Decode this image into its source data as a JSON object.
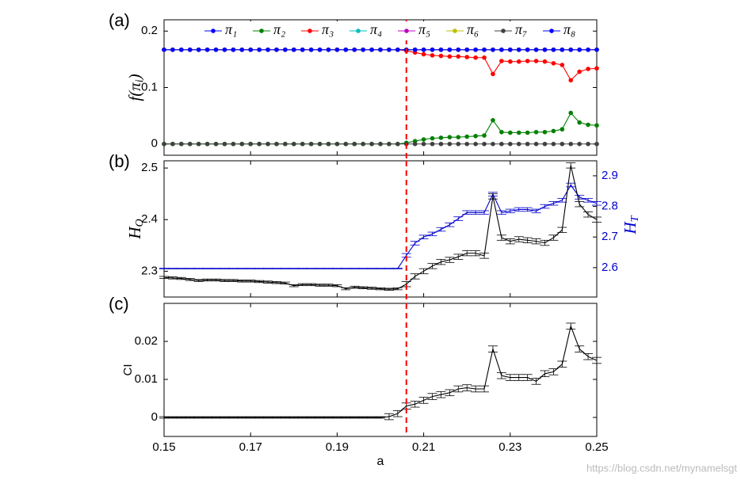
{
  "chart_data": [
    {
      "type": "line",
      "panel_label": "(a)",
      "ylabel": {
        "main": "f(π",
        "sub": "i",
        "tail": ")"
      },
      "xlim": [
        0.15,
        0.25
      ],
      "ylim": [
        -0.02,
        0.22
      ],
      "yticks": [
        0,
        0.1,
        0.2
      ],
      "markers": true,
      "legend": "top",
      "vline": 0.206,
      "vline_color": "#ff0000",
      "x": [
        0.15,
        0.152,
        0.154,
        0.156,
        0.158,
        0.16,
        0.162,
        0.164,
        0.166,
        0.168,
        0.17,
        0.172,
        0.174,
        0.176,
        0.178,
        0.18,
        0.182,
        0.184,
        0.186,
        0.188,
        0.19,
        0.192,
        0.194,
        0.196,
        0.198,
        0.2,
        0.202,
        0.204,
        0.206,
        0.208,
        0.21,
        0.212,
        0.214,
        0.216,
        0.218,
        0.22,
        0.222,
        0.224,
        0.226,
        0.228,
        0.23,
        0.232,
        0.234,
        0.236,
        0.238,
        0.24,
        0.242,
        0.244,
        0.246,
        0.248,
        0.25
      ],
      "series": [
        {
          "name": "π₁",
          "color": "#0000ff",
          "values": [
            0.167,
            0.167,
            0.167,
            0.167,
            0.167,
            0.167,
            0.167,
            0.167,
            0.167,
            0.167,
            0.167,
            0.167,
            0.167,
            0.167,
            0.167,
            0.167,
            0.167,
            0.167,
            0.167,
            0.167,
            0.167,
            0.167,
            0.167,
            0.167,
            0.167,
            0.167,
            0.167,
            0.167,
            0.167,
            0.167,
            0.167,
            0.167,
            0.167,
            0.167,
            0.167,
            0.167,
            0.167,
            0.167,
            0.167,
            0.167,
            0.167,
            0.167,
            0.167,
            0.167,
            0.167,
            0.167,
            0.167,
            0.167,
            0.167,
            0.167,
            0.167
          ]
        },
        {
          "name": "π₂",
          "color": "#008000",
          "values": [
            0,
            0,
            0,
            0,
            0,
            0,
            0,
            0,
            0,
            0,
            0,
            0,
            0,
            0,
            0,
            0,
            0,
            0,
            0,
            0,
            0,
            0,
            0,
            0,
            0,
            0,
            0,
            0,
            0.002,
            0.005,
            0.008,
            0.01,
            0.011,
            0.012,
            0.012,
            0.013,
            0.014,
            0.015,
            0.042,
            0.021,
            0.02,
            0.02,
            0.02,
            0.021,
            0.021,
            0.023,
            0.026,
            0.055,
            0.038,
            0.034,
            0.033
          ]
        },
        {
          "name": "π₃",
          "color": "#ff0000",
          "values": [
            0.167,
            0.167,
            0.167,
            0.167,
            0.167,
            0.167,
            0.167,
            0.167,
            0.167,
            0.167,
            0.167,
            0.167,
            0.167,
            0.167,
            0.167,
            0.167,
            0.167,
            0.167,
            0.167,
            0.167,
            0.167,
            0.167,
            0.167,
            0.167,
            0.167,
            0.167,
            0.167,
            0.167,
            0.165,
            0.162,
            0.159,
            0.157,
            0.156,
            0.155,
            0.155,
            0.154,
            0.153,
            0.153,
            0.124,
            0.147,
            0.146,
            0.146,
            0.147,
            0.147,
            0.146,
            0.143,
            0.14,
            0.113,
            0.128,
            0.133,
            0.134
          ]
        },
        {
          "name": "π₄",
          "color": "#00bfbf",
          "values": [
            0.167,
            0.167,
            0.167,
            0.167,
            0.167,
            0.167,
            0.167,
            0.167,
            0.167,
            0.167,
            0.167,
            0.167,
            0.167,
            0.167,
            0.167,
            0.167,
            0.167,
            0.167,
            0.167,
            0.167,
            0.167,
            0.167,
            0.167,
            0.167,
            0.167,
            0.167,
            0.167,
            0.167,
            0.167,
            0.167,
            0.167,
            0.167,
            0.167,
            0.167,
            0.167,
            0.167,
            0.167,
            0.167,
            0.167,
            0.167,
            0.167,
            0.167,
            0.167,
            0.167,
            0.167,
            0.167,
            0.167,
            0.167,
            0.167,
            0.167,
            0.167
          ]
        },
        {
          "name": "π₅",
          "color": "#bf00bf",
          "values": [
            0.167,
            0.167,
            0.167,
            0.167,
            0.167,
            0.167,
            0.167,
            0.167,
            0.167,
            0.167,
            0.167,
            0.167,
            0.167,
            0.167,
            0.167,
            0.167,
            0.167,
            0.167,
            0.167,
            0.167,
            0.167,
            0.167,
            0.167,
            0.167,
            0.167,
            0.167,
            0.167,
            0.167,
            0.167,
            0.167,
            0.167,
            0.167,
            0.167,
            0.167,
            0.167,
            0.167,
            0.167,
            0.167,
            0.167,
            0.167,
            0.167,
            0.167,
            0.167,
            0.167,
            0.167,
            0.167,
            0.167,
            0.167,
            0.167,
            0.167,
            0.167
          ]
        },
        {
          "name": "π₆",
          "color": "#bfbf00",
          "values": [
            0.167,
            0.167,
            0.167,
            0.167,
            0.167,
            0.167,
            0.167,
            0.167,
            0.167,
            0.167,
            0.167,
            0.167,
            0.167,
            0.167,
            0.167,
            0.167,
            0.167,
            0.167,
            0.167,
            0.167,
            0.167,
            0.167,
            0.167,
            0.167,
            0.167,
            0.167,
            0.167,
            0.167,
            0.167,
            0.167,
            0.167,
            0.167,
            0.167,
            0.167,
            0.167,
            0.167,
            0.167,
            0.167,
            0.167,
            0.167,
            0.167,
            0.167,
            0.167,
            0.167,
            0.167,
            0.167,
            0.167,
            0.167,
            0.167,
            0.167,
            0.167
          ]
        },
        {
          "name": "π₇",
          "color": "#404040",
          "values": [
            0,
            0,
            0,
            0,
            0,
            0,
            0,
            0,
            0,
            0,
            0,
            0,
            0,
            0,
            0,
            0,
            0,
            0,
            0,
            0,
            0,
            0,
            0,
            0,
            0,
            0,
            0,
            0,
            0,
            0,
            0,
            0,
            0,
            0,
            0,
            0,
            0,
            0,
            0,
            0,
            0,
            0,
            0,
            0,
            0,
            0,
            0,
            0,
            0,
            0,
            0
          ]
        },
        {
          "name": "π₈",
          "color": "#0000ff",
          "values": [
            0.167,
            0.167,
            0.167,
            0.167,
            0.167,
            0.167,
            0.167,
            0.167,
            0.167,
            0.167,
            0.167,
            0.167,
            0.167,
            0.167,
            0.167,
            0.167,
            0.167,
            0.167,
            0.167,
            0.167,
            0.167,
            0.167,
            0.167,
            0.167,
            0.167,
            0.167,
            0.167,
            0.167,
            0.167,
            0.167,
            0.167,
            0.167,
            0.167,
            0.167,
            0.167,
            0.167,
            0.167,
            0.167,
            0.167,
            0.167,
            0.167,
            0.167,
            0.167,
            0.167,
            0.167,
            0.167,
            0.167,
            0.167,
            0.167,
            0.167,
            0.167
          ]
        }
      ]
    },
    {
      "type": "line",
      "panel_label": "(b)",
      "ylabel": {
        "main": "H",
        "sub": "O"
      },
      "y2label": {
        "main": "H",
        "sub": "T"
      },
      "y2color": "#0000cc",
      "xlim": [
        0.15,
        0.25
      ],
      "ylim": [
        2.25,
        2.514
      ],
      "yticks": [
        2.3,
        2.4,
        2.5
      ],
      "y2lim": [
        2.504,
        2.949
      ],
      "y2ticks": [
        2.6,
        2.7,
        2.8,
        2.9
      ],
      "vline": 0.206,
      "vline_color": "#ff0000",
      "x": [
        0.15,
        0.152,
        0.154,
        0.156,
        0.158,
        0.16,
        0.162,
        0.164,
        0.166,
        0.168,
        0.17,
        0.172,
        0.174,
        0.176,
        0.178,
        0.18,
        0.182,
        0.184,
        0.186,
        0.188,
        0.19,
        0.192,
        0.194,
        0.196,
        0.198,
        0.2,
        0.202,
        0.204,
        0.206,
        0.208,
        0.21,
        0.212,
        0.214,
        0.216,
        0.218,
        0.22,
        0.222,
        0.224,
        0.226,
        0.228,
        0.23,
        0.232,
        0.234,
        0.236,
        0.238,
        0.24,
        0.242,
        0.244,
        0.246,
        0.248,
        0.25
      ],
      "series": [
        {
          "color": "#0000cc",
          "axis": "y2",
          "values": [
            2.597,
            2.597,
            2.597,
            2.597,
            2.597,
            2.597,
            2.597,
            2.597,
            2.597,
            2.597,
            2.597,
            2.597,
            2.597,
            2.597,
            2.597,
            2.597,
            2.597,
            2.597,
            2.597,
            2.597,
            2.597,
            2.597,
            2.597,
            2.597,
            2.597,
            2.597,
            2.597,
            2.597,
            2.64,
            2.68,
            2.7,
            2.71,
            2.725,
            2.74,
            2.76,
            2.78,
            2.78,
            2.78,
            2.84,
            2.78,
            2.785,
            2.79,
            2.79,
            2.785,
            2.8,
            2.81,
            2.82,
            2.87,
            2.83,
            2.82,
            2.81
          ],
          "errors": [
            0.001,
            0.001,
            0.001,
            0.001,
            0.001,
            0.001,
            0.001,
            0.001,
            0.001,
            0.001,
            0.001,
            0.001,
            0.001,
            0.001,
            0.001,
            0.001,
            0.001,
            0.001,
            0.001,
            0.001,
            0.001,
            0.001,
            0.001,
            0.001,
            0.001,
            0.001,
            0.001,
            0.001,
            0.006,
            0.006,
            0.006,
            0.006,
            0.006,
            0.006,
            0.006,
            0.006,
            0.006,
            0.006,
            0.006,
            0.006,
            0.006,
            0.006,
            0.006,
            0.006,
            0.006,
            0.006,
            0.006,
            0.006,
            0.006,
            0.006,
            0.006
          ]
        },
        {
          "color": "#000000",
          "values": [
            2.288,
            2.287,
            2.286,
            2.284,
            2.282,
            2.283,
            2.283,
            2.282,
            2.282,
            2.281,
            2.281,
            2.28,
            2.279,
            2.278,
            2.277,
            2.272,
            2.274,
            2.274,
            2.273,
            2.273,
            2.272,
            2.266,
            2.269,
            2.268,
            2.267,
            2.266,
            2.265,
            2.266,
            2.275,
            2.29,
            2.3,
            2.31,
            2.318,
            2.322,
            2.328,
            2.335,
            2.335,
            2.33,
            2.445,
            2.365,
            2.358,
            2.362,
            2.36,
            2.358,
            2.355,
            2.365,
            2.38,
            2.505,
            2.43,
            2.41,
            2.4
          ],
          "errors": [
            0.002,
            0.002,
            0.002,
            0.002,
            0.002,
            0.002,
            0.002,
            0.002,
            0.002,
            0.002,
            0.002,
            0.002,
            0.002,
            0.002,
            0.002,
            0.002,
            0.002,
            0.002,
            0.002,
            0.002,
            0.002,
            0.002,
            0.002,
            0.002,
            0.002,
            0.002,
            0.002,
            0.002,
            0.005,
            0.005,
            0.005,
            0.005,
            0.005,
            0.005,
            0.005,
            0.005,
            0.005,
            0.005,
            0.005,
            0.005,
            0.005,
            0.005,
            0.005,
            0.005,
            0.005,
            0.005,
            0.005,
            0.005,
            0.005,
            0.005,
            0.005
          ]
        }
      ]
    },
    {
      "type": "line",
      "panel_label": "(c)",
      "ylabel": "CI",
      "xlabel": "a",
      "xlim": [
        0.15,
        0.25
      ],
      "xticks": [
        0.15,
        0.17,
        0.19,
        0.21,
        0.23,
        0.25
      ],
      "ylim": [
        -0.005,
        0.03
      ],
      "yticks": [
        0,
        0.01,
        0.02
      ],
      "vline": 0.206,
      "vline_color": "#ff0000",
      "x": [
        0.15,
        0.152,
        0.154,
        0.156,
        0.158,
        0.16,
        0.162,
        0.164,
        0.166,
        0.168,
        0.17,
        0.172,
        0.174,
        0.176,
        0.178,
        0.18,
        0.182,
        0.184,
        0.186,
        0.188,
        0.19,
        0.192,
        0.194,
        0.196,
        0.198,
        0.2,
        0.202,
        0.204,
        0.206,
        0.208,
        0.21,
        0.212,
        0.214,
        0.216,
        0.218,
        0.22,
        0.222,
        0.224,
        0.226,
        0.228,
        0.23,
        0.232,
        0.234,
        0.236,
        0.238,
        0.24,
        0.242,
        0.244,
        0.246,
        0.248,
        0.25
      ],
      "series": [
        {
          "color": "#000000",
          "values": [
            0,
            0,
            0,
            0,
            0,
            0,
            0,
            0,
            0,
            0,
            0,
            0,
            0,
            0,
            0,
            0,
            0,
            0,
            0,
            0,
            0,
            0,
            0,
            0,
            0,
            0,
            0.0002,
            0.001,
            0.003,
            0.0035,
            0.0045,
            0.0055,
            0.006,
            0.0065,
            0.0075,
            0.0078,
            0.0075,
            0.0075,
            0.018,
            0.011,
            0.0105,
            0.0105,
            0.0105,
            0.0095,
            0.0115,
            0.012,
            0.014,
            0.024,
            0.018,
            0.016,
            0.015
          ],
          "errors": [
            0.0002,
            0.0002,
            0.0002,
            0.0002,
            0.0002,
            0.0002,
            0.0002,
            0.0002,
            0.0002,
            0.0002,
            0.0002,
            0.0002,
            0.0002,
            0.0002,
            0.0002,
            0.0002,
            0.0002,
            0.0002,
            0.0002,
            0.0002,
            0.0002,
            0.0002,
            0.0002,
            0.0002,
            0.0002,
            0.0002,
            0.0008,
            0.0008,
            0.0008,
            0.0008,
            0.0008,
            0.0008,
            0.0008,
            0.0008,
            0.0008,
            0.0008,
            0.0008,
            0.0008,
            0.0008,
            0.0008,
            0.0008,
            0.0008,
            0.0008,
            0.0008,
            0.0008,
            0.0008,
            0.0008,
            0.0008,
            0.0008,
            0.0008,
            0.0008
          ]
        }
      ]
    }
  ],
  "watermark": "https://blog.csdn.net/mynamelsgt"
}
